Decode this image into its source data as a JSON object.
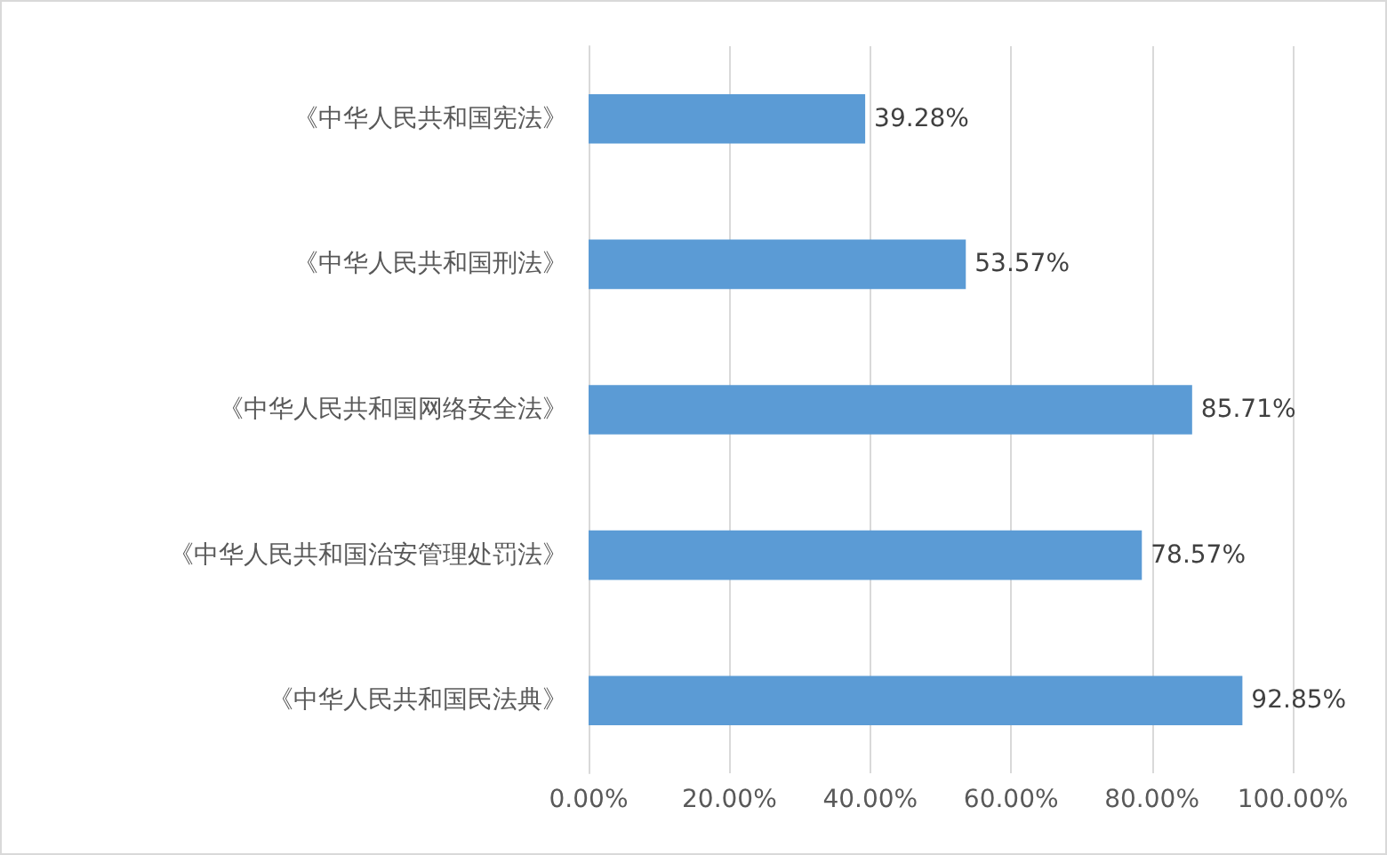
{
  "chart_data": {
    "type": "bar",
    "orientation": "horizontal",
    "categories": [
      "《中华人民共和国宪法》",
      "《中华人民共和国刑法》",
      "《中华人民共和国网络安全法》",
      "《中华人民共和国治安管理处罚法》",
      "《中华人民共和国民法典》"
    ],
    "values": [
      39.28,
      53.57,
      85.71,
      78.57,
      92.85
    ],
    "value_labels": [
      "39.28%",
      "53.57%",
      "85.71%",
      "78.57%",
      "92.85%"
    ],
    "color": "#5b9bd5",
    "xlim": [
      0,
      100
    ],
    "xticks": [
      {
        "value": 0,
        "label": "0.00%"
      },
      {
        "value": 20,
        "label": "20.00%"
      },
      {
        "value": 40,
        "label": "40.00%"
      },
      {
        "value": 60,
        "label": "60.00%"
      },
      {
        "value": 80,
        "label": "80.00%"
      },
      {
        "value": 100,
        "label": "100.00%"
      }
    ],
    "grid": "x"
  }
}
